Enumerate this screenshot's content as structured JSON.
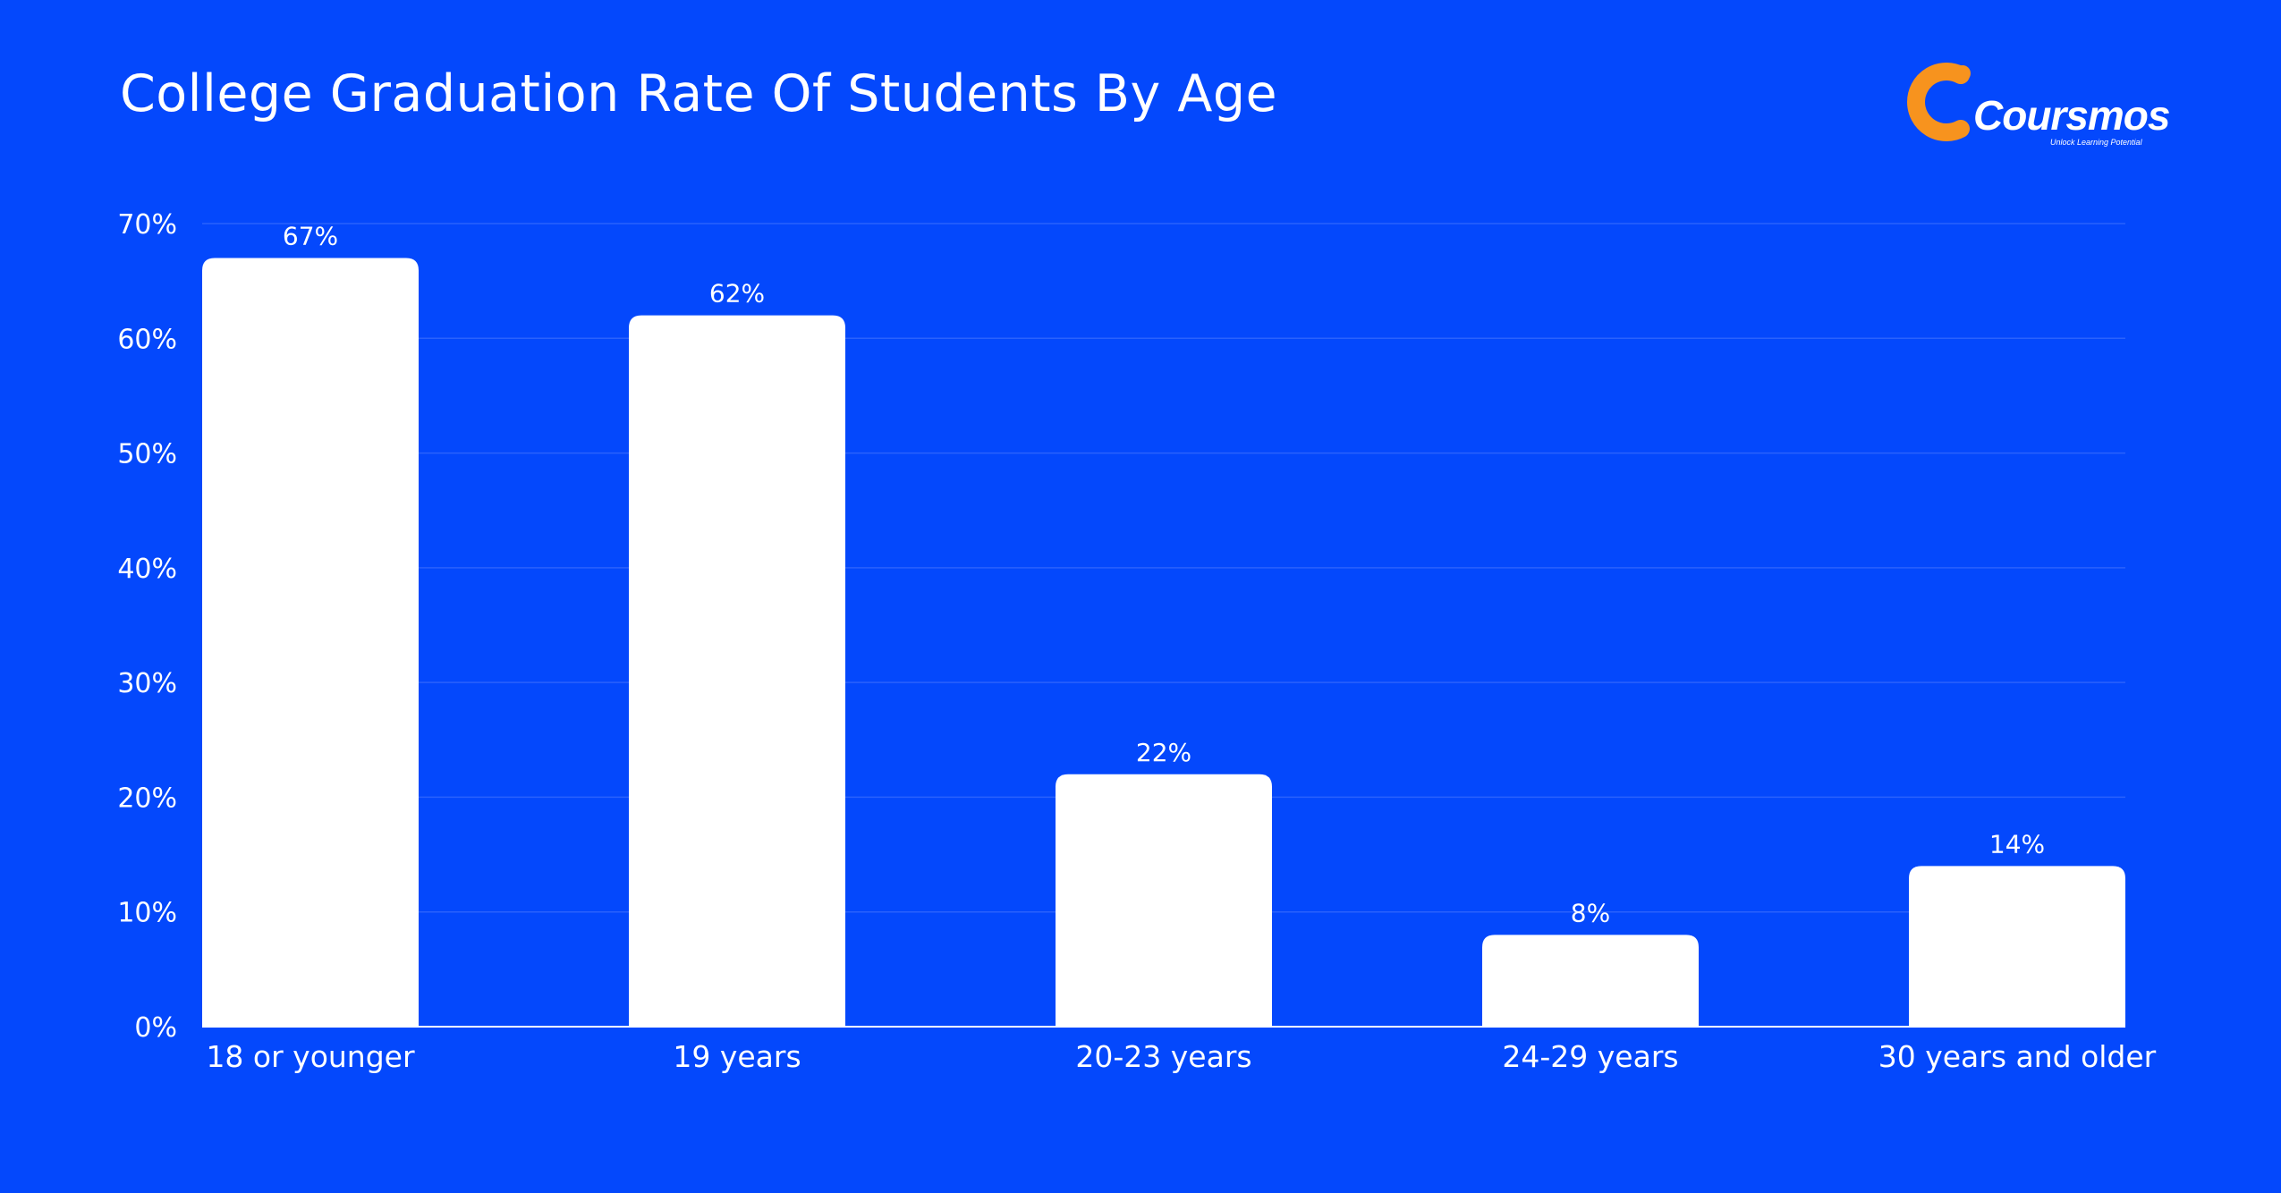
{
  "brand": {
    "name": "Coursmos",
    "tagline": "Unlock Learning Potential",
    "accent_color": "#f7931e",
    "background_color": "#0448fc",
    "bar_color": "#ffffff",
    "grid_color": "#2a62fd"
  },
  "chart_data": {
    "type": "bar",
    "title": "College Graduation Rate Of Students By Age",
    "xlabel": "",
    "ylabel": "",
    "categories": [
      "18 or younger",
      "19 years",
      "20-23 years",
      "24-29 years",
      "30 years and older"
    ],
    "values": [
      67,
      62,
      22,
      8,
      14
    ],
    "data_labels": [
      "67%",
      "62%",
      "22%",
      "8%",
      "14%"
    ],
    "ylim": [
      0,
      70
    ],
    "yticks": [
      0,
      10,
      20,
      30,
      40,
      50,
      60,
      70
    ],
    "ytick_labels": [
      "0%",
      "10%",
      "20%",
      "30%",
      "40%",
      "50%",
      "60%",
      "70%"
    ],
    "grid": true,
    "legend": "none"
  }
}
